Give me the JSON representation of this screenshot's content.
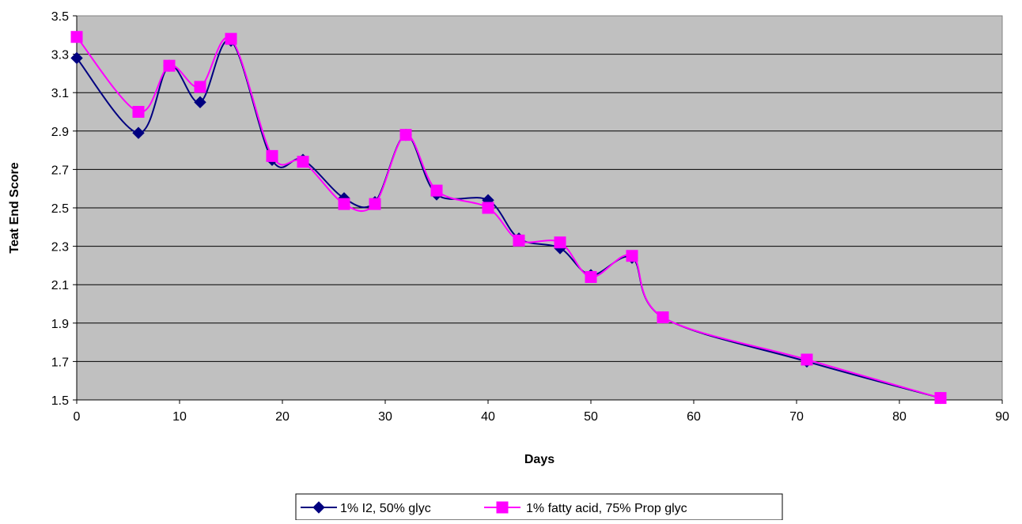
{
  "chart_data": {
    "type": "line",
    "xlabel": "Days",
    "ylabel": "Teat End Score",
    "xlim": [
      0,
      90
    ],
    "ylim": [
      1.5,
      3.5
    ],
    "x_ticks": [
      0,
      10,
      20,
      30,
      40,
      50,
      60,
      70,
      80,
      90
    ],
    "y_ticks": [
      1.5,
      1.7,
      1.9,
      2.1,
      2.3,
      2.5,
      2.7,
      2.9,
      3.1,
      3.3,
      3.5
    ],
    "y_tick_labels": [
      "1.5",
      "1.7",
      "1.9",
      "2.1",
      "2.3",
      "2.5",
      "2.7",
      "2.9",
      "3.1",
      "3.3",
      "3.5"
    ],
    "grid": "horizontal",
    "smoothed": true,
    "legend_position": "bottom",
    "plot_background": "#C0C0C0",
    "series": [
      {
        "name": "1% I2, 50% glyc",
        "color": "#000080",
        "marker": "diamond",
        "x": [
          0,
          6,
          9,
          12,
          15,
          19,
          22,
          26,
          29,
          32,
          35,
          40,
          43,
          47,
          50,
          54,
          57,
          71,
          84
        ],
        "y": [
          3.28,
          2.89,
          3.24,
          3.05,
          3.37,
          2.75,
          2.75,
          2.55,
          2.53,
          2.88,
          2.57,
          2.54,
          2.34,
          2.29,
          2.15,
          2.24,
          1.93,
          1.7,
          1.51
        ]
      },
      {
        "name": "1% fatty acid, 75% Prop glyc",
        "color": "#FF00FF",
        "marker": "square",
        "x": [
          0,
          6,
          9,
          12,
          15,
          19,
          22,
          26,
          29,
          32,
          35,
          40,
          43,
          47,
          50,
          54,
          57,
          71,
          84
        ],
        "y": [
          3.39,
          3.0,
          3.24,
          3.13,
          3.38,
          2.77,
          2.74,
          2.52,
          2.52,
          2.88,
          2.59,
          2.5,
          2.33,
          2.32,
          2.14,
          2.25,
          1.93,
          1.71,
          1.51
        ]
      }
    ]
  }
}
